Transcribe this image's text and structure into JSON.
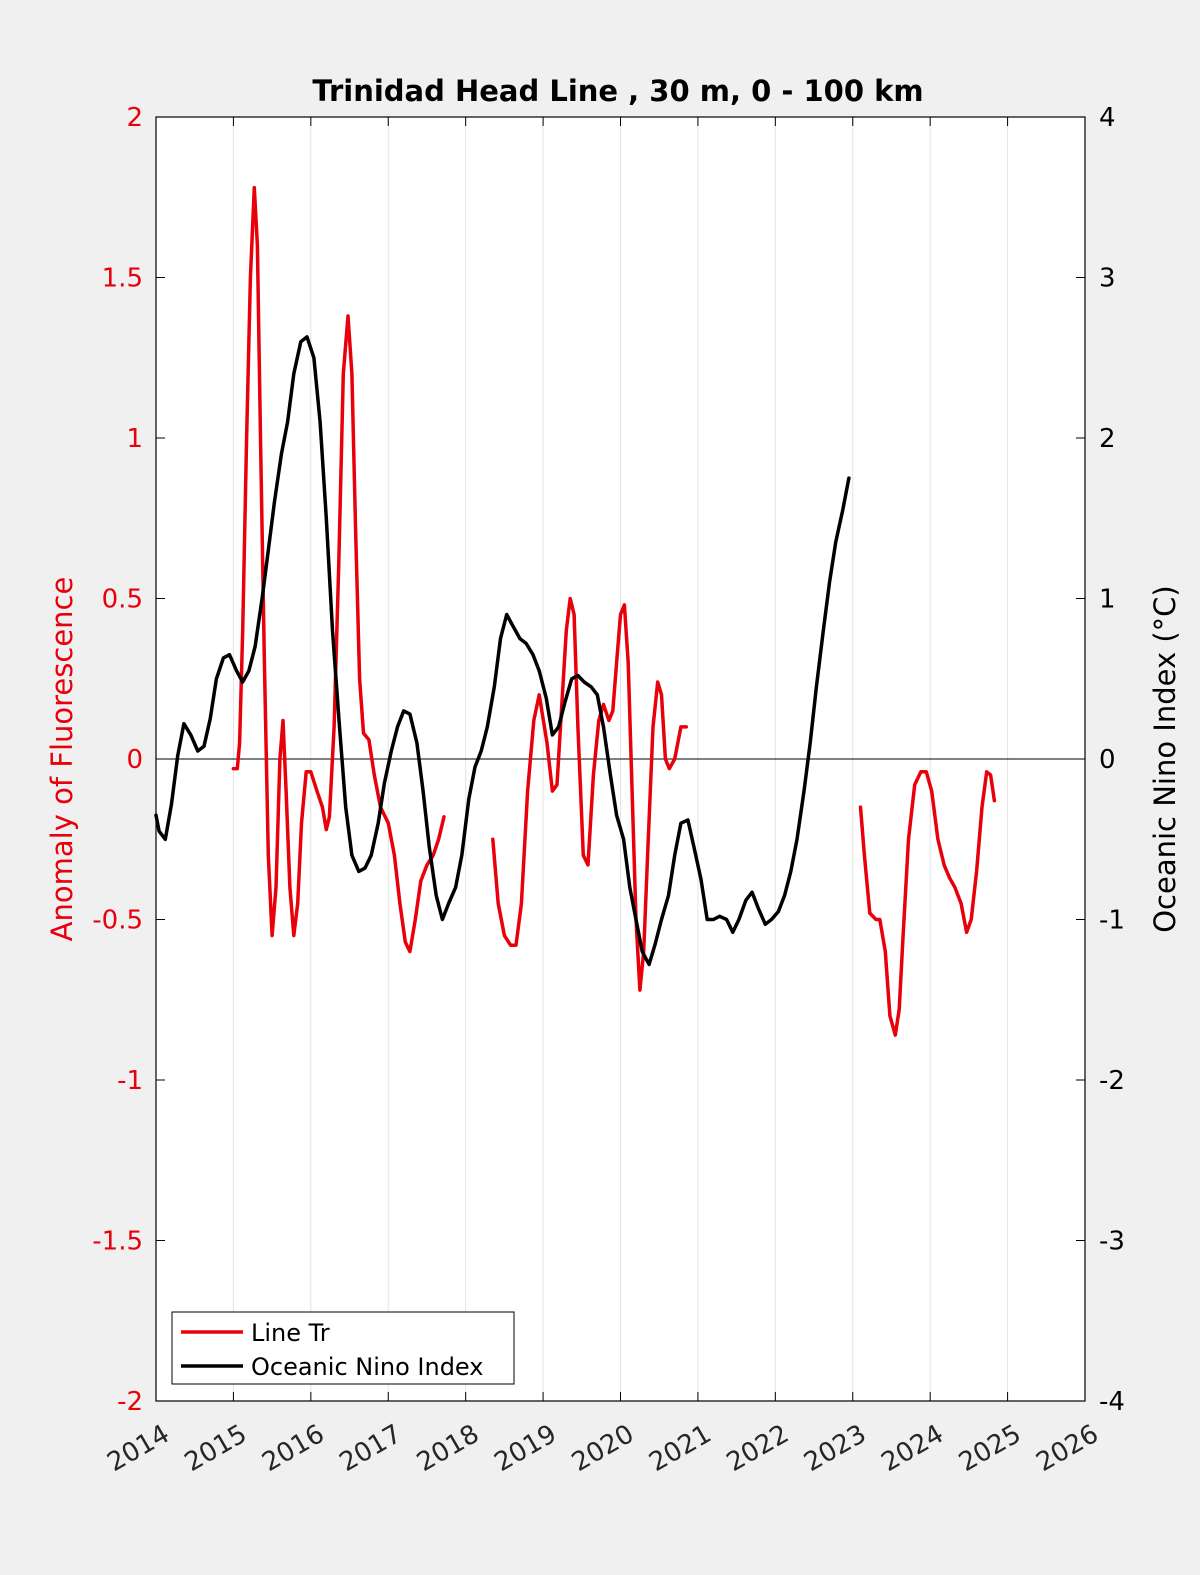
{
  "chart_data": {
    "type": "line",
    "title": "Trinidad Head Line , 30 m, 0 - 100 km",
    "xlim": [
      2014,
      2026
    ],
    "x_ticks": [
      "2014",
      "2015",
      "2016",
      "2017",
      "2018",
      "2019",
      "2020",
      "2021",
      "2022",
      "2023",
      "2024",
      "2025",
      "2026"
    ],
    "left_axis": {
      "label": "Anomaly of Fluorescence",
      "ylim": [
        -2,
        2
      ],
      "ticks": [
        "2",
        "1.5",
        "1",
        "0.5",
        "0",
        "-0.5",
        "-1",
        "-1.5",
        "-2"
      ],
      "color": "#e8000b"
    },
    "right_axis": {
      "label": "Oceanic Nino Index (°C)",
      "ylim": [
        -4,
        4
      ],
      "ticks": [
        "4",
        "3",
        "2",
        "1",
        "0",
        "-1",
        "-2",
        "-3",
        "-4"
      ],
      "color": "#000000"
    },
    "grid": "vertical",
    "legend_position": "bottom-left",
    "series": [
      {
        "name": "Line Tr",
        "axis": "left",
        "color": "#e8000b",
        "segments": [
          [
            [
              2015.0,
              -0.03
            ],
            [
              2015.05,
              -0.03
            ],
            [
              2015.08,
              0.05
            ],
            [
              2015.12,
              0.4
            ],
            [
              2015.17,
              1.0
            ],
            [
              2015.22,
              1.5
            ],
            [
              2015.27,
              1.78
            ],
            [
              2015.31,
              1.6
            ],
            [
              2015.35,
              1.0
            ],
            [
              2015.4,
              0.3
            ],
            [
              2015.45,
              -0.3
            ],
            [
              2015.5,
              -0.55
            ],
            [
              2015.55,
              -0.4
            ],
            [
              2015.6,
              0.0
            ],
            [
              2015.64,
              0.12
            ],
            [
              2015.68,
              -0.1
            ],
            [
              2015.73,
              -0.4
            ],
            [
              2015.78,
              -0.55
            ],
            [
              2015.83,
              -0.45
            ],
            [
              2015.88,
              -0.2
            ],
            [
              2015.94,
              -0.04
            ],
            [
              2016.0,
              -0.04
            ],
            [
              2016.08,
              -0.1
            ],
            [
              2016.15,
              -0.15
            ],
            [
              2016.2,
              -0.22
            ],
            [
              2016.24,
              -0.18
            ],
            [
              2016.3,
              0.1
            ],
            [
              2016.36,
              0.6
            ],
            [
              2016.42,
              1.2
            ],
            [
              2016.48,
              1.38
            ],
            [
              2016.53,
              1.2
            ],
            [
              2016.58,
              0.7
            ],
            [
              2016.63,
              0.25
            ],
            [
              2016.68,
              0.08
            ],
            [
              2016.75,
              0.06
            ],
            [
              2016.82,
              -0.05
            ],
            [
              2016.9,
              -0.15
            ],
            [
              2017.0,
              -0.2
            ],
            [
              2017.08,
              -0.3
            ],
            [
              2017.15,
              -0.45
            ],
            [
              2017.22,
              -0.57
            ],
            [
              2017.28,
              -0.6
            ],
            [
              2017.35,
              -0.5
            ],
            [
              2017.42,
              -0.38
            ],
            [
              2017.5,
              -0.33
            ],
            [
              2017.58,
              -0.3
            ],
            [
              2017.65,
              -0.25
            ],
            [
              2017.72,
              -0.18
            ]
          ],
          [
            [
              2018.35,
              -0.25
            ],
            [
              2018.42,
              -0.45
            ],
            [
              2018.5,
              -0.55
            ],
            [
              2018.58,
              -0.58
            ],
            [
              2018.65,
              -0.58
            ],
            [
              2018.72,
              -0.45
            ],
            [
              2018.8,
              -0.1
            ],
            [
              2018.88,
              0.12
            ],
            [
              2018.95,
              0.2
            ],
            [
              2019.05,
              0.05
            ],
            [
              2019.12,
              -0.1
            ],
            [
              2019.18,
              -0.08
            ],
            [
              2019.25,
              0.2
            ],
            [
              2019.3,
              0.4
            ],
            [
              2019.35,
              0.5
            ],
            [
              2019.4,
              0.45
            ],
            [
              2019.45,
              0.1
            ],
            [
              2019.52,
              -0.3
            ],
            [
              2019.58,
              -0.33
            ],
            [
              2019.65,
              -0.05
            ],
            [
              2019.72,
              0.12
            ],
            [
              2019.78,
              0.17
            ],
            [
              2019.85,
              0.12
            ],
            [
              2019.9,
              0.15
            ],
            [
              2019.95,
              0.3
            ],
            [
              2020.0,
              0.45
            ],
            [
              2020.05,
              0.48
            ],
            [
              2020.1,
              0.3
            ],
            [
              2020.15,
              -0.1
            ],
            [
              2020.2,
              -0.5
            ],
            [
              2020.25,
              -0.72
            ],
            [
              2020.3,
              -0.6
            ],
            [
              2020.35,
              -0.3
            ],
            [
              2020.42,
              0.1
            ],
            [
              2020.48,
              0.24
            ],
            [
              2020.53,
              0.2
            ],
            [
              2020.58,
              0.0
            ],
            [
              2020.63,
              -0.03
            ],
            [
              2020.7,
              0.0
            ],
            [
              2020.78,
              0.1
            ],
            [
              2020.85,
              0.1
            ]
          ],
          [
            [
              2023.1,
              -0.15
            ],
            [
              2023.15,
              -0.3
            ],
            [
              2023.22,
              -0.48
            ],
            [
              2023.3,
              -0.5
            ],
            [
              2023.35,
              -0.5
            ],
            [
              2023.42,
              -0.6
            ],
            [
              2023.48,
              -0.8
            ],
            [
              2023.55,
              -0.86
            ],
            [
              2023.6,
              -0.78
            ],
            [
              2023.65,
              -0.55
            ],
            [
              2023.72,
              -0.25
            ],
            [
              2023.8,
              -0.08
            ],
            [
              2023.88,
              -0.04
            ],
            [
              2023.95,
              -0.04
            ],
            [
              2024.02,
              -0.1
            ],
            [
              2024.1,
              -0.25
            ],
            [
              2024.18,
              -0.33
            ],
            [
              2024.25,
              -0.37
            ],
            [
              2024.32,
              -0.4
            ],
            [
              2024.4,
              -0.45
            ],
            [
              2024.47,
              -0.54
            ],
            [
              2024.53,
              -0.5
            ],
            [
              2024.6,
              -0.35
            ],
            [
              2024.67,
              -0.15
            ],
            [
              2024.73,
              -0.04
            ],
            [
              2024.78,
              -0.05
            ],
            [
              2024.83,
              -0.13
            ]
          ]
        ]
      },
      {
        "name": "Oceanic Nino Index",
        "axis": "right",
        "color": "#000000",
        "segments": [
          [
            [
              2014.0,
              -0.35
            ],
            [
              2014.04,
              -0.45
            ],
            [
              2014.12,
              -0.5
            ],
            [
              2014.2,
              -0.28
            ],
            [
              2014.28,
              0.02
            ],
            [
              2014.36,
              0.22
            ],
            [
              2014.45,
              0.15
            ],
            [
              2014.54,
              0.05
            ],
            [
              2014.62,
              0.08
            ],
            [
              2014.7,
              0.25
            ],
            [
              2014.78,
              0.5
            ],
            [
              2014.87,
              0.63
            ],
            [
              2014.95,
              0.65
            ],
            [
              2015.04,
              0.55
            ],
            [
              2015.12,
              0.48
            ],
            [
              2015.2,
              0.55
            ],
            [
              2015.28,
              0.7
            ],
            [
              2015.37,
              1.0
            ],
            [
              2015.45,
              1.3
            ],
            [
              2015.53,
              1.6
            ],
            [
              2015.62,
              1.9
            ],
            [
              2015.7,
              2.1
            ],
            [
              2015.78,
              2.4
            ],
            [
              2015.87,
              2.6
            ],
            [
              2015.95,
              2.63
            ],
            [
              2016.04,
              2.5
            ],
            [
              2016.12,
              2.1
            ],
            [
              2016.2,
              1.5
            ],
            [
              2016.28,
              0.8
            ],
            [
              2016.37,
              0.2
            ],
            [
              2016.45,
              -0.3
            ],
            [
              2016.53,
              -0.6
            ],
            [
              2016.62,
              -0.7
            ],
            [
              2016.7,
              -0.68
            ],
            [
              2016.78,
              -0.6
            ],
            [
              2016.87,
              -0.4
            ],
            [
              2016.95,
              -0.15
            ],
            [
              2017.04,
              0.05
            ],
            [
              2017.12,
              0.2
            ],
            [
              2017.2,
              0.3
            ],
            [
              2017.28,
              0.28
            ],
            [
              2017.37,
              0.1
            ],
            [
              2017.45,
              -0.2
            ],
            [
              2017.53,
              -0.55
            ],
            [
              2017.62,
              -0.85
            ],
            [
              2017.7,
              -1.0
            ],
            [
              2017.78,
              -0.9
            ],
            [
              2017.87,
              -0.8
            ],
            [
              2017.95,
              -0.6
            ],
            [
              2018.04,
              -0.25
            ],
            [
              2018.12,
              -0.05
            ],
            [
              2018.2,
              0.05
            ],
            [
              2018.28,
              0.2
            ],
            [
              2018.37,
              0.45
            ],
            [
              2018.45,
              0.75
            ],
            [
              2018.53,
              0.9
            ],
            [
              2018.62,
              0.82
            ],
            [
              2018.7,
              0.75
            ],
            [
              2018.78,
              0.72
            ],
            [
              2018.87,
              0.65
            ],
            [
              2018.95,
              0.55
            ],
            [
              2019.04,
              0.38
            ],
            [
              2019.12,
              0.15
            ],
            [
              2019.2,
              0.2
            ],
            [
              2019.28,
              0.35
            ],
            [
              2019.37,
              0.5
            ],
            [
              2019.45,
              0.52
            ],
            [
              2019.53,
              0.48
            ],
            [
              2019.62,
              0.45
            ],
            [
              2019.7,
              0.4
            ],
            [
              2019.78,
              0.2
            ],
            [
              2019.87,
              -0.1
            ],
            [
              2019.95,
              -0.35
            ],
            [
              2020.04,
              -0.5
            ],
            [
              2020.12,
              -0.8
            ],
            [
              2020.2,
              -1.0
            ],
            [
              2020.28,
              -1.2
            ],
            [
              2020.37,
              -1.28
            ],
            [
              2020.45,
              -1.15
            ],
            [
              2020.53,
              -1.0
            ],
            [
              2020.62,
              -0.85
            ],
            [
              2020.7,
              -0.6
            ],
            [
              2020.78,
              -0.4
            ],
            [
              2020.87,
              -0.38
            ],
            [
              2020.95,
              -0.55
            ],
            [
              2021.04,
              -0.75
            ],
            [
              2021.12,
              -1.0
            ],
            [
              2021.2,
              -1.0
            ],
            [
              2021.28,
              -0.98
            ],
            [
              2021.37,
              -1.0
            ],
            [
              2021.45,
              -1.08
            ],
            [
              2021.53,
              -1.0
            ],
            [
              2021.62,
              -0.88
            ],
            [
              2021.7,
              -0.83
            ],
            [
              2021.78,
              -0.93
            ],
            [
              2021.87,
              -1.03
            ],
            [
              2021.95,
              -1.0
            ],
            [
              2022.04,
              -0.95
            ],
            [
              2022.12,
              -0.85
            ],
            [
              2022.2,
              -0.7
            ],
            [
              2022.28,
              -0.5
            ],
            [
              2022.37,
              -0.2
            ],
            [
              2022.45,
              0.1
            ],
            [
              2022.53,
              0.45
            ],
            [
              2022.62,
              0.8
            ],
            [
              2022.7,
              1.1
            ],
            [
              2022.78,
              1.35
            ],
            [
              2022.87,
              1.55
            ],
            [
              2022.95,
              1.75
            ]
          ]
        ]
      }
    ]
  },
  "legend": {
    "entries": [
      {
        "name": "Line Tr",
        "color": "#e8000b"
      },
      {
        "name": "Oceanic Nino Index",
        "color": "#000000"
      }
    ]
  }
}
